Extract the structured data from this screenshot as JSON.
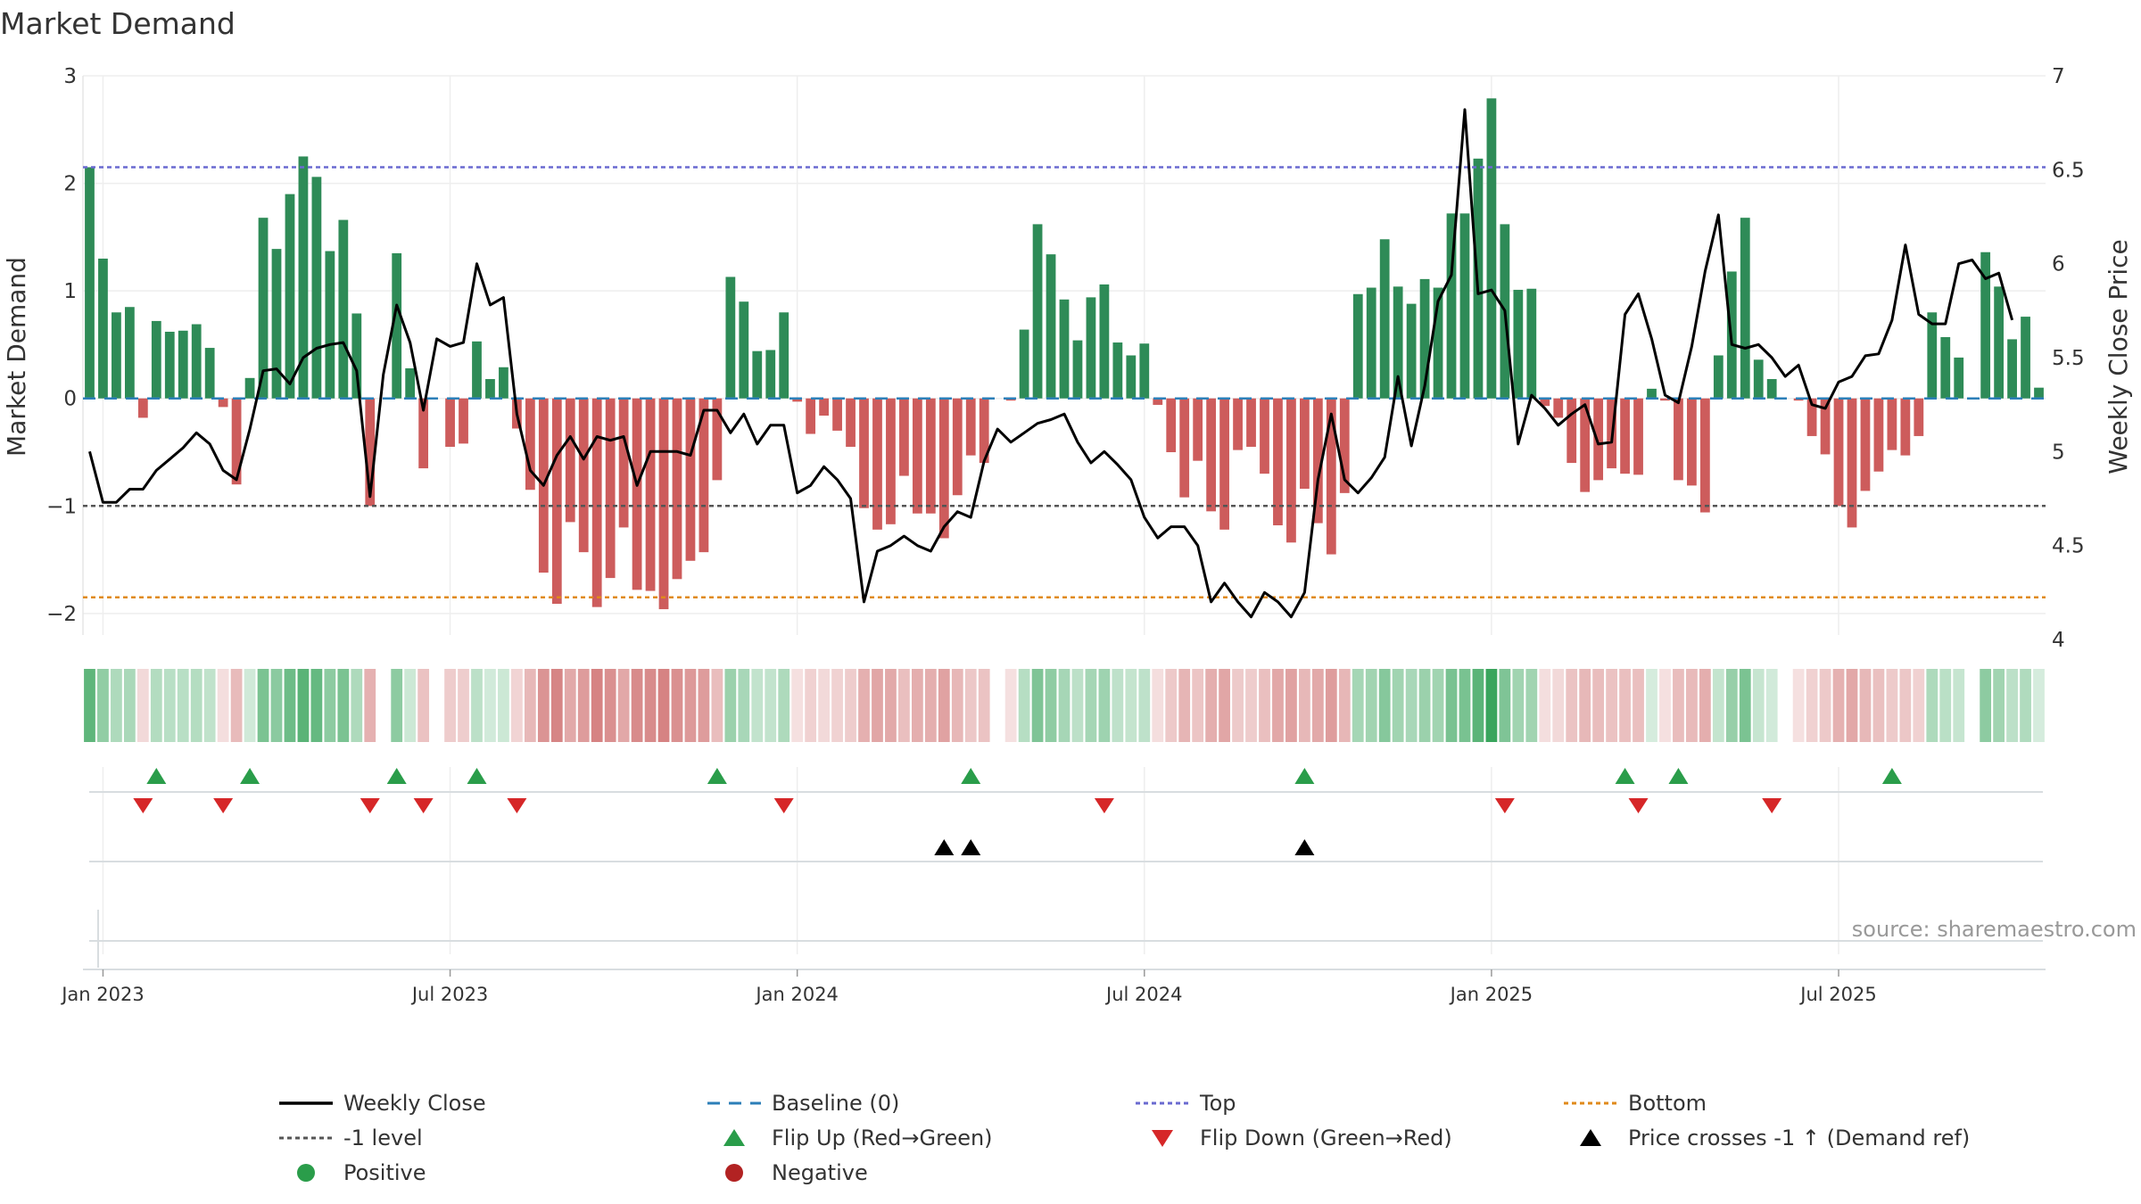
{
  "chart_data": {
    "type": "bar",
    "title": "Market Demand",
    "ylabel": "Market Demand",
    "y2label": "Weekly Close Price",
    "ylim": [
      -2.2,
      3.0
    ],
    "y2lim": [
      4.0,
      7.0
    ],
    "yticks": [
      "3",
      "2",
      "1",
      "0",
      "−1",
      "−2"
    ],
    "y2ticks": [
      "7",
      "6.5",
      "6",
      "5.5",
      "5",
      "4.5",
      "4"
    ],
    "x_ticks": [
      "Jan 2023",
      "Jul 2023",
      "Jan 2024",
      "Jul 2024",
      "Jan 2025",
      "Jul 2025"
    ],
    "x_tick_weeks": [
      0,
      26,
      52,
      78,
      104,
      130
    ],
    "start_week_offset": -1,
    "reference_lines": {
      "top": 2.15,
      "bottom": -1.85,
      "minus_one": -1.0,
      "baseline": 0
    },
    "series": [
      {
        "name": "Market Demand",
        "values": [
          2.15,
          1.3,
          0.8,
          0.85,
          -0.18,
          0.72,
          0.62,
          0.63,
          0.69,
          0.47,
          -0.08,
          -0.8,
          0.19,
          1.68,
          1.39,
          1.9,
          2.25,
          2.06,
          1.37,
          1.66,
          0.79,
          -1.0,
          0.0,
          1.35,
          0.28,
          -0.65,
          0.0,
          -0.45,
          -0.42,
          0.53,
          0.18,
          0.29,
          -0.28,
          -0.85,
          -1.62,
          -1.91,
          -1.15,
          -1.43,
          -1.94,
          -1.67,
          -1.2,
          -1.78,
          -1.79,
          -1.96,
          -1.68,
          -1.51,
          -1.43,
          -0.76,
          1.13,
          0.9,
          0.44,
          0.45,
          0.8,
          -0.03,
          -0.33,
          -0.16,
          -0.3,
          -0.45,
          -1.02,
          -1.22,
          -1.17,
          -0.72,
          -1.07,
          -1.07,
          -1.3,
          -0.9,
          -0.53,
          -0.6,
          0.0,
          -0.02,
          0.64,
          1.62,
          1.34,
          0.92,
          0.54,
          0.94,
          1.06,
          0.52,
          0.4,
          0.51,
          -0.06,
          -0.5,
          -0.92,
          -0.58,
          -1.05,
          -1.22,
          -0.48,
          -0.45,
          -0.7,
          -1.18,
          -1.34,
          -0.84,
          -1.16,
          -1.45,
          -0.88,
          0.97,
          1.03,
          1.48,
          1.04,
          0.88,
          1.11,
          1.03,
          1.72,
          1.72,
          2.23,
          2.79,
          1.62,
          1.01,
          1.02,
          -0.07,
          -0.18,
          -0.6,
          -0.87,
          -0.76,
          -0.65,
          -0.7,
          -0.71,
          0.09,
          -0.02,
          -0.76,
          -0.81,
          -1.06,
          0.4,
          1.18,
          1.68,
          0.36,
          0.18,
          0.0,
          -0.02,
          -0.35,
          -0.52,
          -1.0,
          -1.2,
          -0.86,
          -0.68,
          -0.48,
          -0.53,
          -0.35,
          0.8,
          0.57,
          0.38,
          0.0,
          1.36,
          1.04,
          0.55,
          0.76,
          0.1
        ]
      },
      {
        "name": "Weekly Close",
        "values": [
          5.0,
          4.73,
          4.73,
          4.8,
          4.8,
          4.9,
          4.96,
          5.02,
          5.1,
          5.04,
          4.9,
          4.85,
          5.12,
          5.43,
          5.44,
          5.36,
          5.5,
          5.55,
          5.57,
          5.58,
          5.43,
          4.76,
          5.41,
          5.78,
          5.58,
          5.22,
          5.6,
          5.56,
          5.58,
          6.0,
          5.78,
          5.82,
          5.2,
          4.9,
          4.82,
          4.98,
          5.08,
          4.96,
          5.08,
          5.06,
          5.08,
          4.82,
          5.0,
          5.0,
          5.0,
          4.98,
          5.22,
          5.22,
          5.1,
          5.2,
          5.04,
          5.14,
          5.14,
          4.78,
          4.82,
          4.92,
          4.85,
          4.75,
          4.2,
          4.47,
          4.5,
          4.55,
          4.5,
          4.47,
          4.6,
          4.68,
          4.65,
          4.95,
          5.12,
          5.05,
          5.1,
          5.15,
          5.17,
          5.2,
          5.05,
          4.94,
          5.0,
          4.93,
          4.85,
          4.65,
          4.54,
          4.6,
          4.6,
          4.5,
          4.2,
          4.3,
          4.2,
          4.12,
          4.25,
          4.2,
          4.12,
          4.25,
          4.85,
          5.2,
          4.85,
          4.78,
          4.86,
          4.97,
          5.4,
          5.03,
          5.35,
          5.8,
          5.94,
          6.82,
          5.84,
          5.86,
          5.75,
          5.04,
          5.3,
          5.23,
          5.14,
          5.2,
          5.25,
          5.04,
          5.05,
          5.73,
          5.84,
          5.6,
          5.3,
          5.26,
          5.56,
          5.96,
          6.26,
          5.57,
          5.55,
          5.57,
          5.5,
          5.4,
          5.46,
          5.25,
          5.23,
          5.37,
          5.4,
          5.51,
          5.52,
          5.7,
          6.1,
          5.73,
          5.68,
          5.68,
          6.0,
          6.02,
          5.92,
          5.95,
          5.7
        ]
      }
    ],
    "legend": [
      {
        "label": "Weekly Close",
        "kind": "line",
        "color": "#000000"
      },
      {
        "label": "Baseline (0)",
        "kind": "dash",
        "color": "#2c7fb8"
      },
      {
        "label": "Top",
        "kind": "dot",
        "color": "#6a6ad0"
      },
      {
        "label": "Bottom",
        "kind": "dot",
        "color": "#e08a1a"
      },
      {
        "label": "-1 level",
        "kind": "dot",
        "color": "#555555"
      },
      {
        "label": "Flip Up (Red→Green)",
        "kind": "tri-up",
        "color": "#2a9d4a"
      },
      {
        "label": "Flip Down (Green→Red)",
        "kind": "tri-down",
        "color": "#d62728"
      },
      {
        "label": "Price crosses -1 ↑ (Demand ref)",
        "kind": "tri-up",
        "color": "#000000"
      },
      {
        "label": "Positive",
        "kind": "circle",
        "color": "#2a9d4a"
      },
      {
        "label": "Negative",
        "kind": "circle",
        "color": "#b22222"
      }
    ],
    "flip_up_weeks": [
      5,
      12,
      23,
      29,
      47,
      66,
      91,
      115,
      119,
      135
    ],
    "flip_down_weeks": [
      4,
      10,
      21,
      25,
      32,
      52,
      76,
      106,
      116,
      126
    ],
    "price_cross_weeks": [
      64,
      66,
      91
    ],
    "colors": {
      "positive": "#2e8b57",
      "negative": "#cd5c5c",
      "price": "#000000",
      "top": "#6a6ad0",
      "bottom": "#e08a1a",
      "baseline": "#2c7fb8",
      "minus_one": "#555555",
      "flip_up": "#2a9d4a",
      "flip_down": "#d62728",
      "cross": "#000000"
    }
  },
  "source": "source: sharemaestro.com"
}
